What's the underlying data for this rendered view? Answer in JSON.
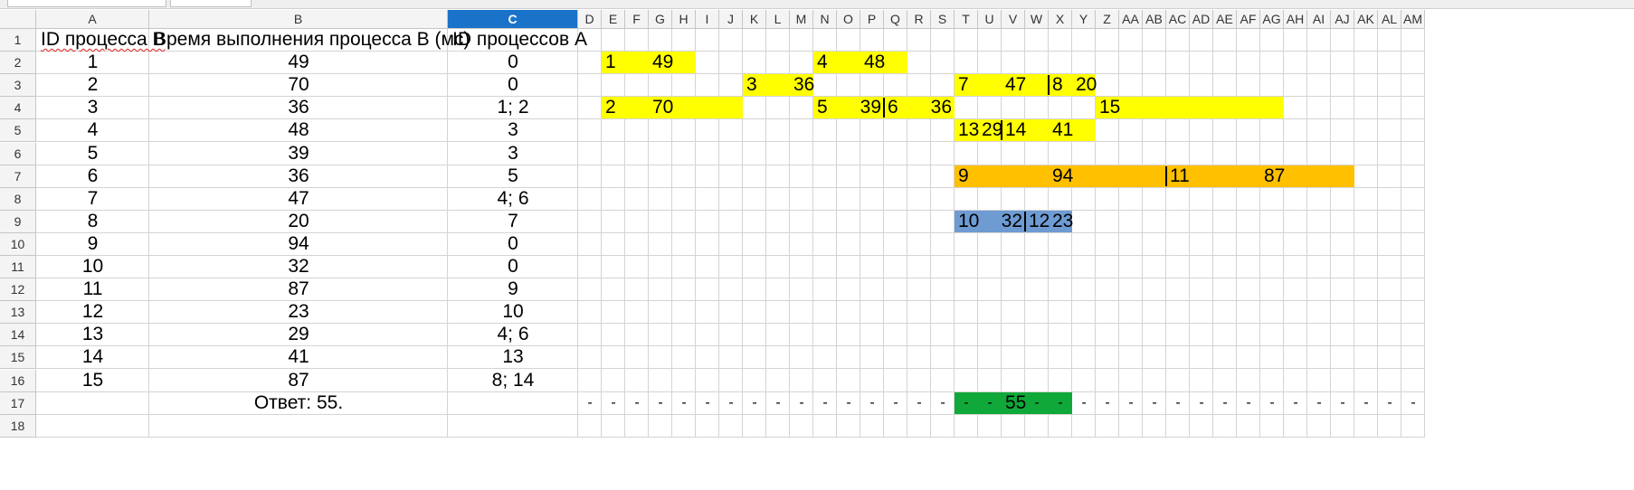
{
  "columns": [
    "A",
    "B",
    "C",
    "D",
    "E",
    "F",
    "G",
    "H",
    "I",
    "J",
    "K",
    "L",
    "M",
    "N",
    "O",
    "P",
    "Q",
    "R",
    "S",
    "T",
    "U",
    "V",
    "W",
    "X",
    "Y",
    "Z",
    "AA",
    "AB",
    "AC",
    "AD",
    "AE",
    "AF",
    "AG",
    "AH",
    "AI",
    "AJ",
    "AK",
    "AL",
    "AM"
  ],
  "selected_column": "C",
  "rows": [
    "1",
    "2",
    "3",
    "4",
    "5",
    "6",
    "7",
    "8",
    "9",
    "10",
    "11",
    "12",
    "13",
    "14",
    "15",
    "16",
    "17",
    "18"
  ],
  "table": {
    "header": {
      "a": "ID процесса B",
      "b": "Время выполнения процесса B (мс)",
      "c": "ID процессов A"
    },
    "records": [
      {
        "a": "1",
        "b": "49",
        "c": "0"
      },
      {
        "a": "2",
        "b": "70",
        "c": "0"
      },
      {
        "a": "3",
        "b": "36",
        "c": "1; 2"
      },
      {
        "a": "4",
        "b": "48",
        "c": "3"
      },
      {
        "a": "5",
        "b": "39",
        "c": "3"
      },
      {
        "a": "6",
        "b": "36",
        "c": "5"
      },
      {
        "a": "7",
        "b": "47",
        "c": "4; 6"
      },
      {
        "a": "8",
        "b": "20",
        "c": "7"
      },
      {
        "a": "9",
        "b": "94",
        "c": "0"
      },
      {
        "a": "10",
        "b": "32",
        "c": "0"
      },
      {
        "a": "11",
        "b": "87",
        "c": "9"
      },
      {
        "a": "12",
        "b": "23",
        "c": "10"
      },
      {
        "a": "13",
        "b": "29",
        "c": "4; 6"
      },
      {
        "a": "14",
        "b": "41",
        "c": "13"
      },
      {
        "a": "15",
        "b": "87",
        "c": "8; 14"
      }
    ],
    "answer": "Ответ: 55."
  },
  "colors": {
    "yellow": "#ffff00",
    "orange": "#ffc000",
    "blue": "#6f9bd3",
    "green": "#11a83a",
    "header_selected": "#1a73c8"
  },
  "timeline": {
    "bands": [
      {
        "row": 2,
        "from": "E",
        "to": "H",
        "color": "yellow"
      },
      {
        "row": 2,
        "from": "N",
        "to": "Q",
        "color": "yellow"
      },
      {
        "row": 3,
        "from": "K",
        "to": "M",
        "color": "yellow"
      },
      {
        "row": 3,
        "from": "T",
        "to": "Y",
        "color": "yellow"
      },
      {
        "row": 4,
        "from": "E",
        "to": "J",
        "color": "yellow"
      },
      {
        "row": 4,
        "from": "N",
        "to": "S",
        "color": "yellow"
      },
      {
        "row": 4,
        "from": "Z",
        "to": "AG",
        "color": "yellow"
      },
      {
        "row": 5,
        "from": "T",
        "to": "Y",
        "color": "yellow"
      },
      {
        "row": 7,
        "from": "T",
        "to": "AJ",
        "color": "orange"
      },
      {
        "row": 9,
        "from": "T",
        "to": "X",
        "color": "blue"
      },
      {
        "row": 17,
        "from": "T",
        "to": "X",
        "color": "green"
      }
    ],
    "labels": [
      {
        "row": 2,
        "col": "E",
        "align": "left",
        "text": "1"
      },
      {
        "row": 2,
        "col": "G",
        "align": "left",
        "text": "49"
      },
      {
        "row": 2,
        "col": "N",
        "align": "left",
        "text": "4"
      },
      {
        "row": 2,
        "col": "P",
        "align": "left",
        "text": "48"
      },
      {
        "row": 3,
        "col": "K",
        "align": "left",
        "text": "3"
      },
      {
        "row": 3,
        "col": "M",
        "align": "left",
        "text": "36"
      },
      {
        "row": 3,
        "col": "T",
        "align": "left",
        "text": "7"
      },
      {
        "row": 3,
        "col": "V",
        "align": "left",
        "text": "47"
      },
      {
        "row": 3,
        "col": "X",
        "align": "left",
        "text": "8"
      },
      {
        "row": 3,
        "col": "Y",
        "align": "left",
        "text": "20"
      },
      {
        "row": 4,
        "col": "E",
        "align": "left",
        "text": "2"
      },
      {
        "row": 4,
        "col": "G",
        "align": "left",
        "text": "70"
      },
      {
        "row": 4,
        "col": "N",
        "align": "left",
        "text": "5"
      },
      {
        "row": 4,
        "col": "P",
        "align": "right",
        "text": "39"
      },
      {
        "row": 4,
        "col": "Q",
        "align": "left",
        "text": "6"
      },
      {
        "row": 4,
        "col": "S",
        "align": "right",
        "text": "36"
      },
      {
        "row": 4,
        "col": "Z",
        "align": "left",
        "text": "15"
      },
      {
        "row": 5,
        "col": "T",
        "align": "left",
        "text": "13"
      },
      {
        "row": 5,
        "col": "U",
        "align": "left",
        "text": "29"
      },
      {
        "row": 5,
        "col": "V",
        "align": "left",
        "text": "14"
      },
      {
        "row": 5,
        "col": "X",
        "align": "left",
        "text": "41"
      },
      {
        "row": 7,
        "col": "T",
        "align": "left",
        "text": "9"
      },
      {
        "row": 7,
        "col": "X",
        "align": "left",
        "text": "94"
      },
      {
        "row": 7,
        "col": "AC",
        "align": "left",
        "text": "11"
      },
      {
        "row": 7,
        "col": "AG",
        "align": "left",
        "text": "87"
      },
      {
        "row": 9,
        "col": "T",
        "align": "left",
        "text": "10"
      },
      {
        "row": 9,
        "col": "V",
        "align": "right",
        "text": "32"
      },
      {
        "row": 9,
        "col": "W",
        "align": "left",
        "text": "12"
      },
      {
        "row": 9,
        "col": "X",
        "align": "left",
        "text": "23"
      },
      {
        "row": 17,
        "col": "V",
        "align": "left",
        "text": "55"
      }
    ],
    "dividers": [
      {
        "row": 3,
        "before_col": "X"
      },
      {
        "row": 4,
        "before_col": "Q"
      },
      {
        "row": 5,
        "before_col": "V"
      },
      {
        "row": 7,
        "before_col": "AC"
      },
      {
        "row": 9,
        "before_col": "W"
      }
    ],
    "dash_row": {
      "row": 17,
      "text": "-"
    }
  }
}
